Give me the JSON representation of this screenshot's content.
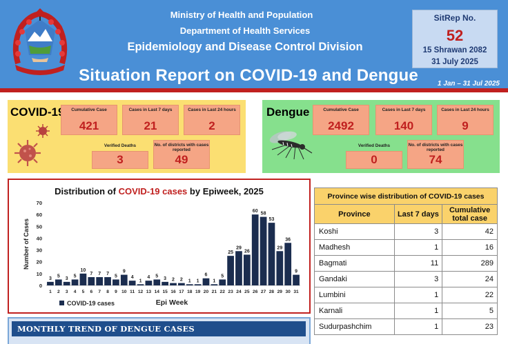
{
  "header": {
    "ministry": "Ministry of Health and Population",
    "department": "Department of Health Services",
    "division": "Epidemiology and Disease Control Division",
    "title": "Situation Report on COVID-19 and Dengue",
    "date_range": "1 Jan – 31 Jul 2025",
    "sitrep_label": "SitRep No.",
    "sitrep_number": "52",
    "date_nepali": "15 Shrawan 2082",
    "date_english": "31 July 2025",
    "colors": {
      "banner": "#4a8fd6",
      "accent": "#c0201f"
    },
    "icons": [
      "nepal-emblem-icon"
    ]
  },
  "covid": {
    "title": "COVID-19",
    "stats": [
      {
        "label": "Cumulative Case",
        "value": "421"
      },
      {
        "label": "Cases in Last 7 days",
        "value": "21"
      },
      {
        "label": "Cases in Last 24 hours",
        "value": "2"
      },
      {
        "label": "Verified Deaths",
        "value": "3"
      },
      {
        "label": "No. of districts with cases reported",
        "value": "49"
      }
    ],
    "icons": [
      "coronavirus-icon"
    ]
  },
  "dengue": {
    "title": "Dengue",
    "stats": [
      {
        "label": "Cumulative Case",
        "value": "2492"
      },
      {
        "label": "Cases in Last 7 days",
        "value": "140"
      },
      {
        "label": "Cases in Last 24 hours",
        "value": "9"
      },
      {
        "label": "Verified Deaths",
        "value": "0"
      },
      {
        "label": "No. of districts with cases reported",
        "value": "74"
      }
    ],
    "icons": [
      "mosquito-icon"
    ]
  },
  "chart_data": {
    "type": "bar",
    "title_prefix": "Distribution of ",
    "title_highlight": "COVID-19 cases",
    "title_suffix": " by Epiweek, 2025",
    "xlabel": "Epi Week",
    "ylabel": "Number of Cases",
    "ylim": [
      0,
      70
    ],
    "yticks": [
      0,
      10,
      20,
      30,
      40,
      50,
      60,
      70
    ],
    "categories": [
      "1",
      "2",
      "3",
      "4",
      "5",
      "6",
      "7",
      "8",
      "9",
      "10",
      "11",
      "12",
      "13",
      "14",
      "15",
      "16",
      "17",
      "18",
      "19",
      "20",
      "21",
      "22",
      "23",
      "24",
      "25",
      "26",
      "27",
      "28",
      "29",
      "30",
      "31"
    ],
    "series": [
      {
        "name": "COVID-19 cases",
        "values": [
          3,
          5,
          3,
          5,
          10,
          7,
          7,
          7,
          5,
          9,
          4,
          1,
          4,
          5,
          3,
          2,
          2,
          1,
          1,
          6,
          1,
          5,
          25,
          29,
          26,
          60,
          58,
          53,
          29,
          36,
          9
        ]
      }
    ],
    "bar_color": "#1b2d4f",
    "legend": "bottom-left"
  },
  "province_table": {
    "title": "Province wise distribution of COVID-19 cases",
    "columns": [
      "Province",
      "Last 7 days",
      "Cumulative total case"
    ],
    "rows": [
      [
        "Koshi",
        "3",
        "42"
      ],
      [
        "Madhesh",
        "1",
        "16"
      ],
      [
        "Bagmati",
        "11",
        "289"
      ],
      [
        "Gandaki",
        "3",
        "24"
      ],
      [
        "Lumbini",
        "1",
        "22"
      ],
      [
        "Karnali",
        "1",
        "5"
      ],
      [
        "Sudurpashchim",
        "1",
        "23"
      ]
    ]
  },
  "monthly": {
    "title": "MONTHLY TREND OF DENGUE CASES"
  }
}
